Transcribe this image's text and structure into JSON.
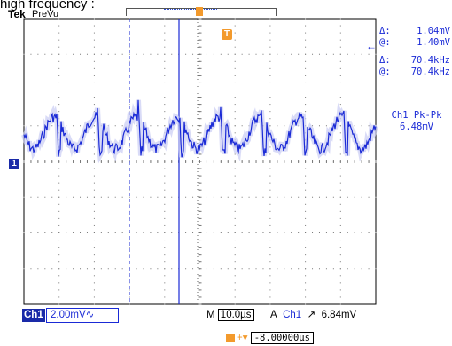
{
  "caption": "high frequency :",
  "header": {
    "brand": "Tek",
    "mode": "PreVu"
  },
  "cursor_readout": {
    "v_delta_label": "Δ:",
    "v_delta_value": "1.04mV",
    "v_at_label": "@:",
    "v_at_value": "1.40mV",
    "t_delta_label": "Δ:",
    "t_delta_value": "70.4kHz",
    "t_at_label": "@:",
    "t_at_value": "70.4kHz"
  },
  "measurement": {
    "label": "Ch1 Pk-Pk",
    "value": "6.48mV"
  },
  "markers": {
    "trigger_letter": "T",
    "ground_label": "1"
  },
  "status_bar": {
    "channel_tag": "Ch1",
    "volts_per_div": "2.00mV",
    "coupling_symbol": "∿",
    "timebase_prefix": "M",
    "time_per_div": "10.0µs",
    "trigger_mode": "A",
    "trigger_source": "Ch1",
    "trigger_slope": "↗",
    "trigger_level": "6.84mV"
  },
  "trigger_offset": {
    "arrows": "+▾",
    "value": "-8.00000µs"
  },
  "colors": {
    "trace": "#1a2ad6",
    "trigger": "#f39a2c",
    "grid": "#888888",
    "ground_tag": "#1a2aa8"
  }
}
